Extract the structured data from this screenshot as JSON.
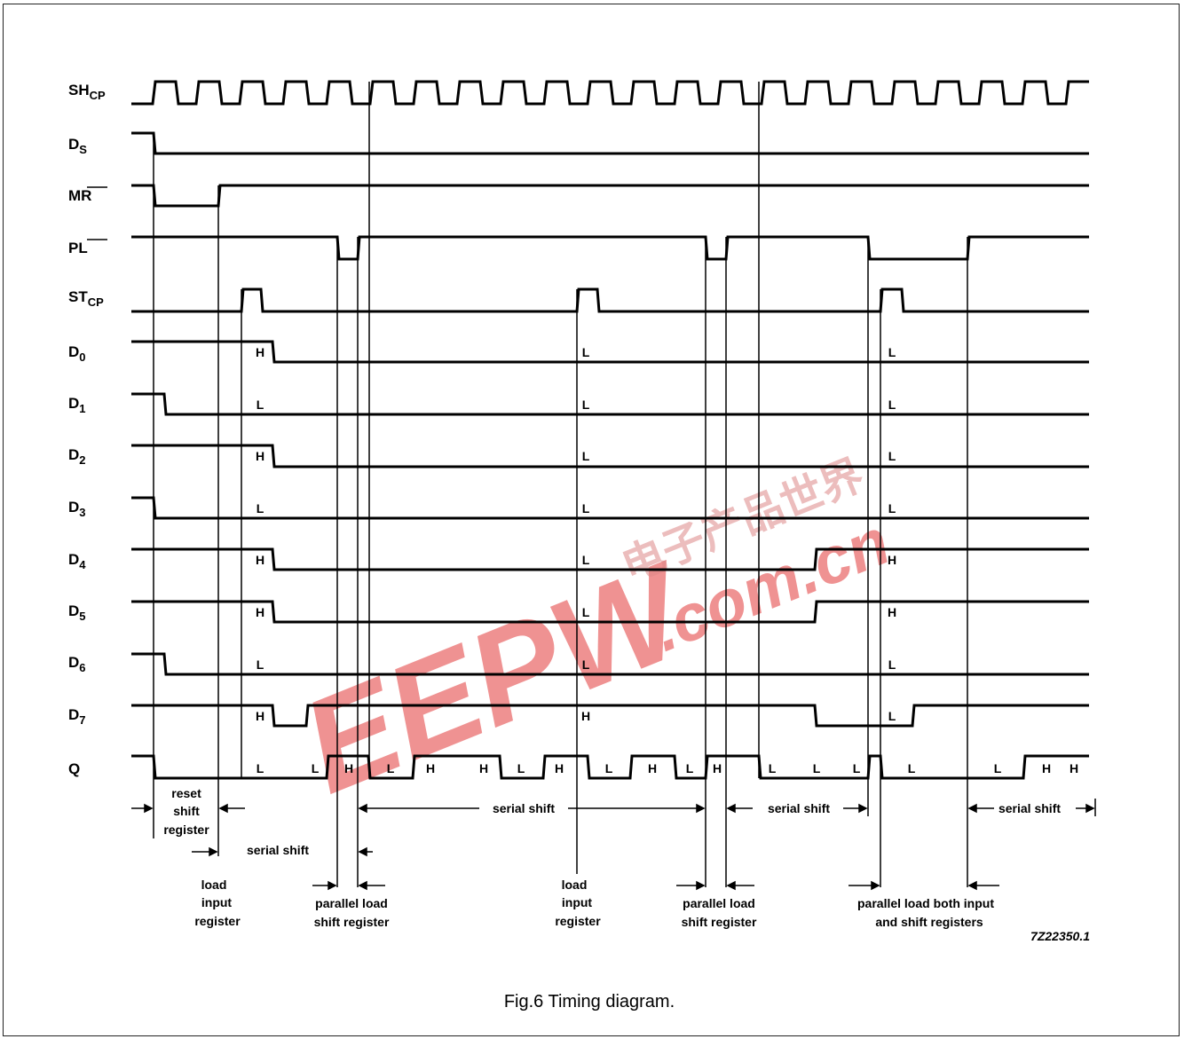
{
  "signals": [
    {
      "id": "shcp",
      "main": "SH",
      "sub": "CP",
      "bar": false
    },
    {
      "id": "ds",
      "main": "D",
      "sub": "S",
      "bar": false
    },
    {
      "id": "mr",
      "main": "MR",
      "sub": "",
      "bar": true
    },
    {
      "id": "pl",
      "main": "PL",
      "sub": "",
      "bar": true
    },
    {
      "id": "stcp",
      "main": "ST",
      "sub": "CP",
      "bar": false
    },
    {
      "id": "d0",
      "main": "D",
      "sub": "0",
      "bar": false
    },
    {
      "id": "d1",
      "main": "D",
      "sub": "1",
      "bar": false
    },
    {
      "id": "d2",
      "main": "D",
      "sub": "2",
      "bar": false
    },
    {
      "id": "d3",
      "main": "D",
      "sub": "3",
      "bar": false
    },
    {
      "id": "d4",
      "main": "D",
      "sub": "4",
      "bar": false
    },
    {
      "id": "d5",
      "main": "D",
      "sub": "5",
      "bar": false
    },
    {
      "id": "d6",
      "main": "D",
      "sub": "6",
      "bar": false
    },
    {
      "id": "d7",
      "main": "D",
      "sub": "7",
      "bar": false
    },
    {
      "id": "q",
      "main": "Q",
      "sub": "",
      "bar": false
    }
  ],
  "data_levels": {
    "d0": [
      "H",
      "L",
      "L"
    ],
    "d1": [
      "L",
      "L",
      "L"
    ],
    "d2": [
      "H",
      "L",
      "L"
    ],
    "d3": [
      "L",
      "L",
      "L"
    ],
    "d4": [
      "H",
      "L",
      "H"
    ],
    "d5": [
      "H",
      "L",
      "H"
    ],
    "d6": [
      "L",
      "L",
      "L"
    ],
    "d7": [
      "H",
      "H",
      "L"
    ]
  },
  "q_levels": [
    "L",
    "L",
    "H",
    "L",
    "H",
    "H",
    "L",
    "H",
    "L",
    "H",
    "L",
    "H",
    "L",
    "L",
    "L",
    "L",
    "L",
    "H",
    "H"
  ],
  "annotations": {
    "reset": [
      "reset",
      "shift",
      "register"
    ],
    "serial_shift_1": "serial shift",
    "serial_shift_2": "serial shift",
    "serial_shift_3": "serial shift",
    "serial_shift_4": "serial shift",
    "load_input_1": [
      "load",
      "input",
      "register"
    ],
    "load_input_2": [
      "load",
      "input",
      "register"
    ],
    "parallel_load_1": [
      "parallel load",
      "shift register"
    ],
    "parallel_load_2": [
      "parallel load",
      "shift register"
    ],
    "parallel_load_both": [
      "parallel load both input",
      "and shift registers"
    ]
  },
  "figure_code": "7Z22350.1",
  "caption": "Fig.6  Timing diagram.",
  "watermark": {
    "logo": "EEPW",
    "domain": ".com.cn",
    "chinese": "电子产品世界"
  },
  "colors": {
    "ink": "#000000",
    "watermark": "#e23a3a"
  }
}
